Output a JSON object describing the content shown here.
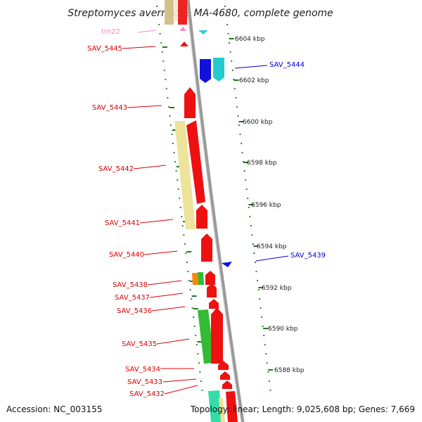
{
  "title": "Streptomyces avermitilis MA-4680, complete genome",
  "accession": "Accession: NC_003155",
  "summary": "Topology: linear; Length: 9,025,608 bp; Genes: 7,669",
  "colors": {
    "forward_label": "#dd0000",
    "reverse_label": "#0000cc",
    "rna_label": "#ee88cc",
    "tick": "#2a8a2a",
    "backbone": "#888888"
  },
  "scale": [
    {
      "label": "6604 kbp"
    },
    {
      "label": "6602 kbp"
    },
    {
      "label": "6600 kbp"
    },
    {
      "label": "6598 kbp"
    },
    {
      "label": "6596 kbp"
    },
    {
      "label": "6594 kbp"
    },
    {
      "label": "6592 kbp"
    },
    {
      "label": "6590 kbp"
    },
    {
      "label": "6588 kbp"
    }
  ],
  "gene_labels": [
    {
      "text": "trn22",
      "strand": "rna"
    },
    {
      "text": "SAV_5445",
      "strand": "forward"
    },
    {
      "text": "SAV_5444",
      "strand": "reverse"
    },
    {
      "text": "SAV_5443",
      "strand": "forward"
    },
    {
      "text": "SAV_5442",
      "strand": "forward"
    },
    {
      "text": "SAV_5441",
      "strand": "forward"
    },
    {
      "text": "SAV_5440",
      "strand": "forward"
    },
    {
      "text": "SAV_5439",
      "strand": "reverse"
    },
    {
      "text": "SAV_5438",
      "strand": "forward"
    },
    {
      "text": "SAV_5437",
      "strand": "forward"
    },
    {
      "text": "SAV_5436",
      "strand": "forward"
    },
    {
      "text": "SAV_5435",
      "strand": "forward"
    },
    {
      "text": "SAV_5434",
      "strand": "forward"
    },
    {
      "text": "SAV_5433",
      "strand": "forward"
    },
    {
      "text": "SAV_5432",
      "strand": "forward"
    }
  ]
}
